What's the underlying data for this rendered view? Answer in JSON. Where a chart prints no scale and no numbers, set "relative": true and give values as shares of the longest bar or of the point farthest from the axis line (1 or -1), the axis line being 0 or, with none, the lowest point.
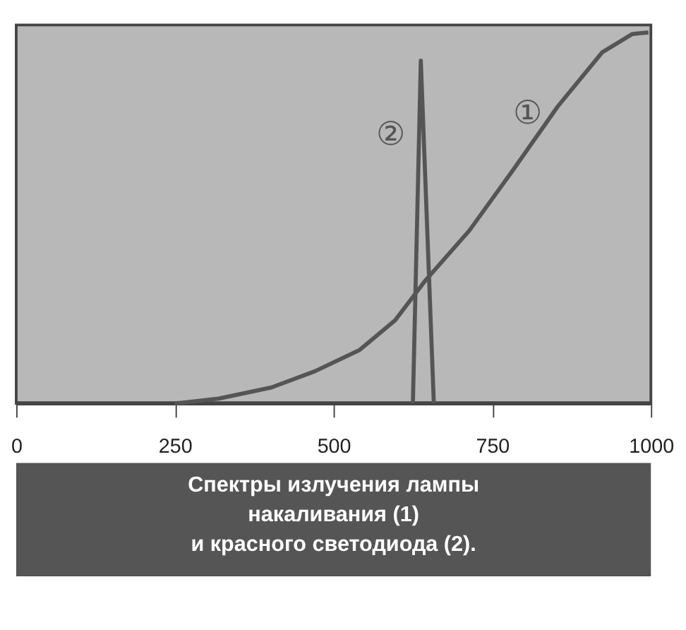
{
  "chart_data": {
    "type": "line",
    "title": "Спектры излучения лампы\nнакаливания (1)\nи красного светодиода (2).",
    "relative": true,
    "xlim": [
      0,
      1000
    ],
    "xticks": [
      0,
      250,
      500,
      750,
      1000
    ],
    "grid": false,
    "marker": "none",
    "line_style": "solid",
    "series": [
      {
        "name": "①",
        "color": "#555555",
        "x": [
          250,
          319,
          402,
          471,
          541,
          597,
          645,
          714,
          784,
          853,
          923,
          971,
          996
        ],
        "values": [
          0,
          0.013,
          0.043,
          0.087,
          0.144,
          0.224,
          0.332,
          0.466,
          0.632,
          0.8,
          0.946,
          0.996,
          1.0
        ]
      },
      {
        "name": "②",
        "color": "#555555",
        "x": [
          625,
          637.5,
          658
        ],
        "values": [
          0,
          0.924,
          0
        ]
      }
    ]
  }
}
